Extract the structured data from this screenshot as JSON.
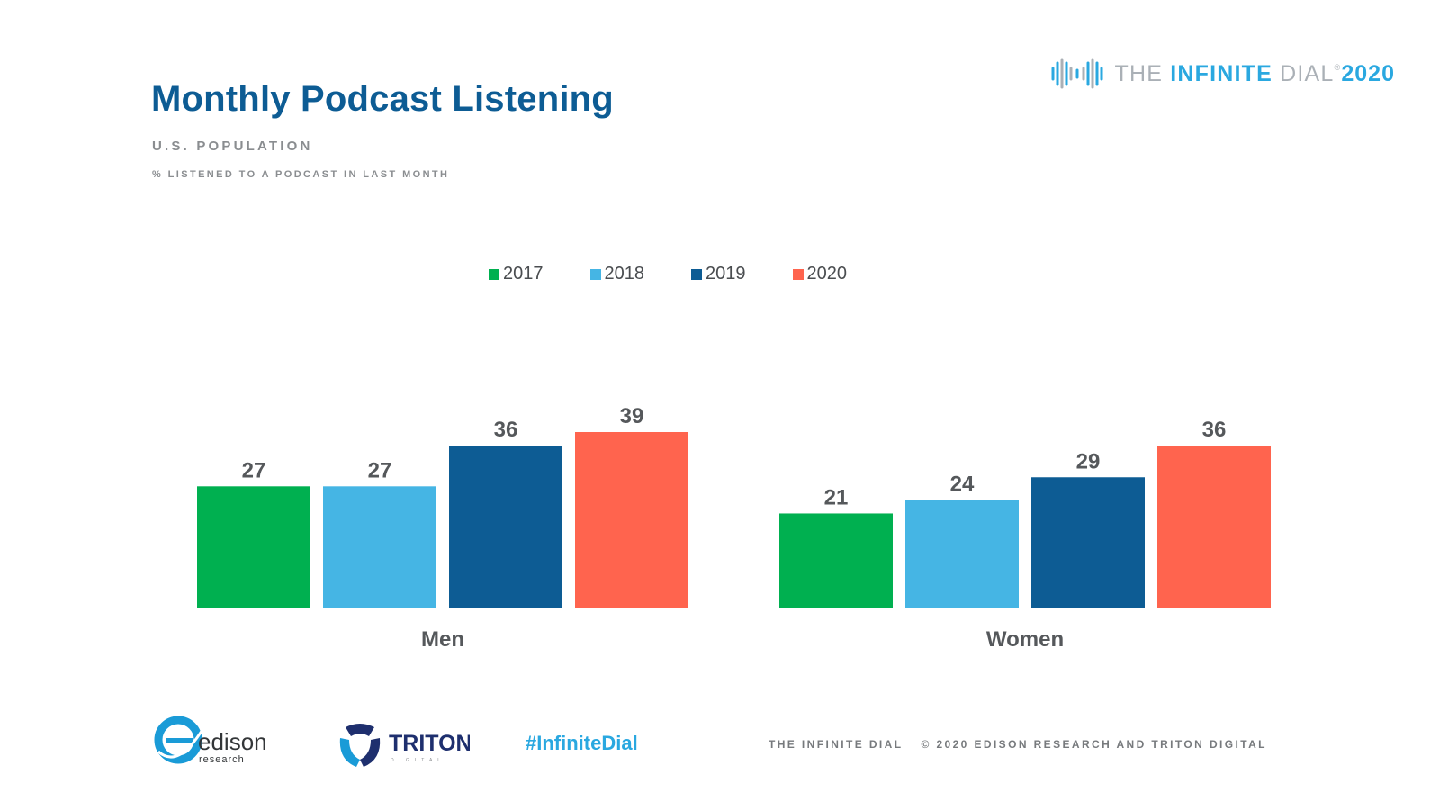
{
  "header": {
    "title": "Monthly Podcast Listening",
    "subtitle": "U.S. POPULATION",
    "subtitle2": "% LISTENED TO A PODCAST IN LAST MONTH"
  },
  "brand": {
    "prefix": "THE ",
    "strong": "INFINITE",
    "suffix": " DIAL",
    "mark": "®",
    "year": "2020"
  },
  "colors": {
    "title": "#0d5c94",
    "series_2017": "#00b050",
    "series_2018": "#45b5e4",
    "series_2019": "#0d5c94",
    "series_2020": "#ff644e"
  },
  "chart_data": {
    "type": "bar",
    "title": "Monthly Podcast Listening",
    "xlabel": "",
    "ylabel": "% listened to a podcast in last month",
    "ylim": [
      0,
      40
    ],
    "legend_position": "top-center",
    "categories": [
      "Men",
      "Women"
    ],
    "series": [
      {
        "name": "2017",
        "color": "#00b050",
        "values": [
          27,
          21
        ]
      },
      {
        "name": "2018",
        "color": "#45b5e4",
        "values": [
          27,
          24
        ]
      },
      {
        "name": "2019",
        "color": "#0d5c94",
        "values": [
          36,
          29
        ]
      },
      {
        "name": "2020",
        "color": "#ff644e",
        "values": [
          39,
          36
        ]
      }
    ]
  },
  "footer": {
    "edison_name": "edison",
    "edison_sub": "research",
    "triton_name": "TRITON",
    "triton_sub": "DIGITAL",
    "hashtag": "#InfiniteDial",
    "left_text": "THE INFINITE DIAL",
    "right_text": "© 2020 EDISON RESEARCH AND TRITON DIGITAL"
  }
}
